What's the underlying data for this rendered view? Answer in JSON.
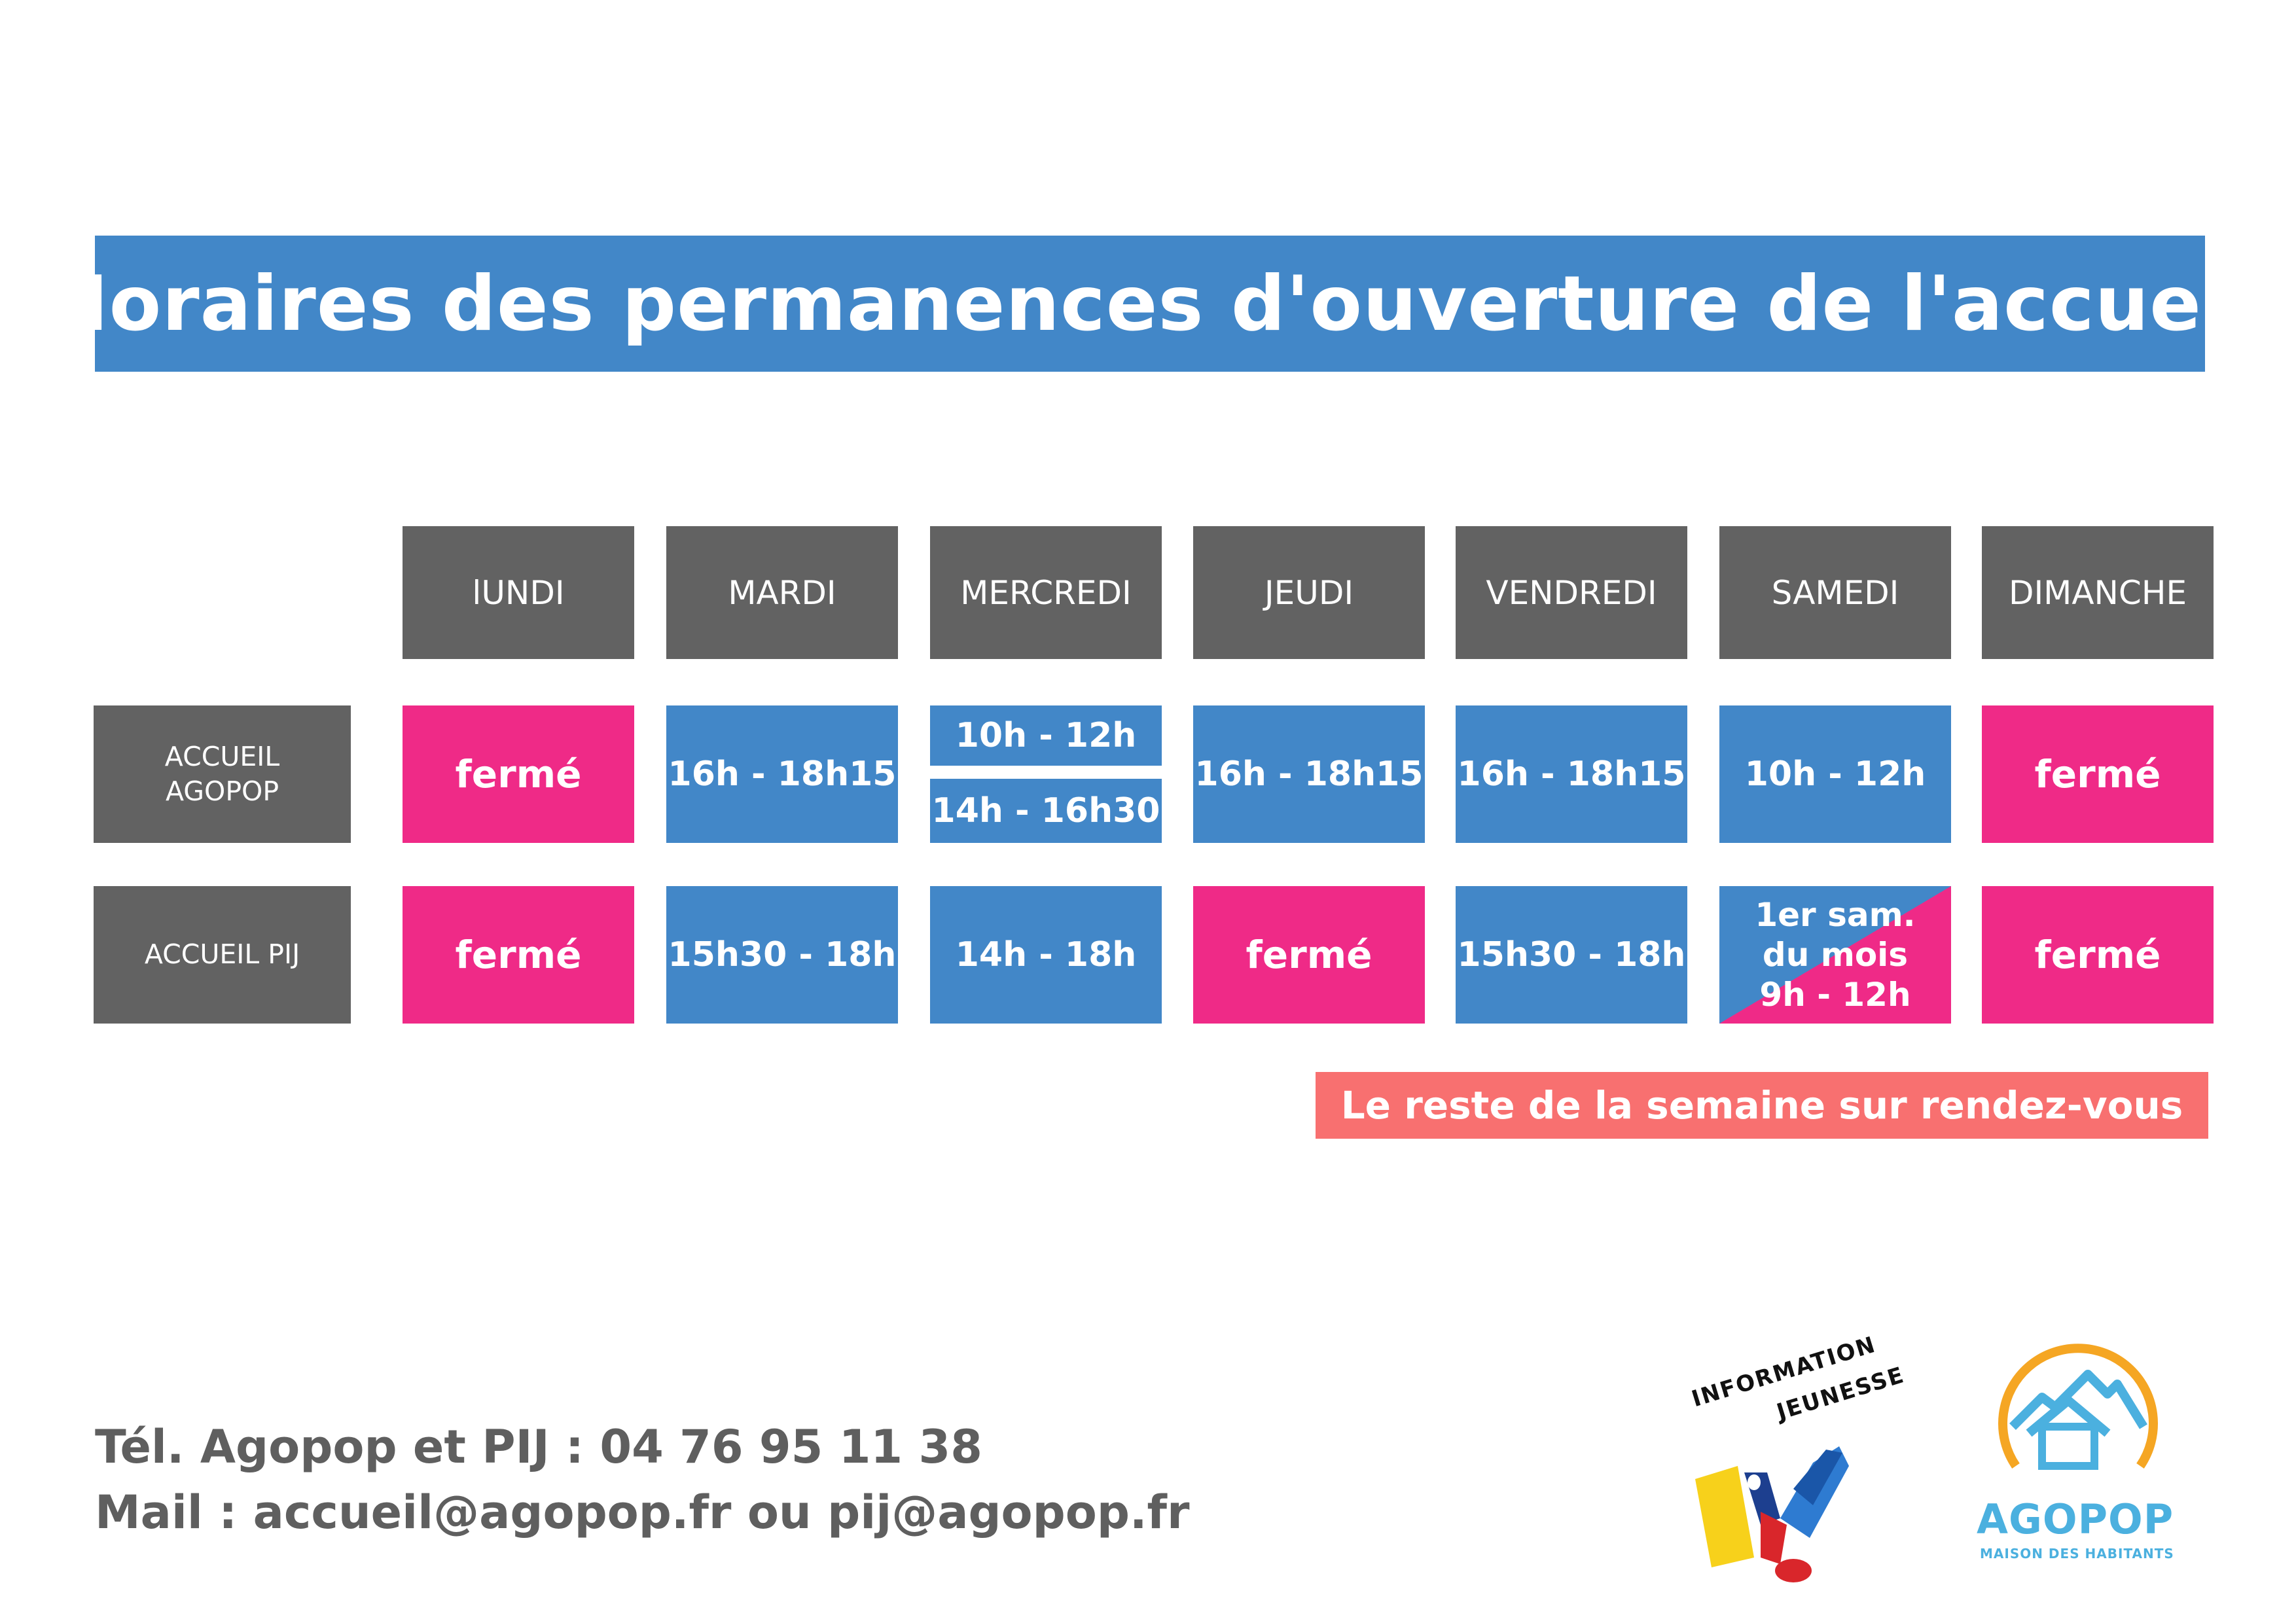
{
  "title": "Horaires des permanences d'ouverture de l'accueil",
  "days": [
    "lUNDI",
    "MARDI",
    "MERCREDI",
    "JEUDI",
    "VENDREDI",
    "SAMEDI",
    "DIMANCHE"
  ],
  "rows": [
    {
      "label_line1": "ACCUEIL",
      "label_line2": "AGOPOP",
      "cells": [
        "fermé",
        "16h - 18h15",
        "",
        "16h - 18h15",
        "16h - 18h15",
        "10h - 12h",
        "fermé"
      ],
      "mercredi_slot1": "10h - 12h",
      "mercredi_slot2": "14h - 16h30"
    },
    {
      "label": "ACCUEIL PIJ",
      "cells": [
        "fermé",
        "15h30 - 18h",
        "14h - 18h",
        "fermé",
        "15h30 - 18h",
        "",
        "fermé"
      ],
      "samedi_line1": "1er sam.",
      "samedi_line2": "du mois",
      "samedi_line3": "9h - 12h"
    }
  ],
  "note": "Le reste de la semaine sur rendez-vous",
  "contact": {
    "tel": "Tél. Agopop et PIJ : 04 76 95 11 38",
    "mail": "Mail : accueil@agopop.fr ou pij@agopop.fr"
  },
  "logos": {
    "ij_line1": "INFORMATION",
    "ij_line2": "JEUNESSE",
    "agopop_name": "AGOPOP",
    "agopop_sub": "MAISON DES HABITANTS"
  },
  "colors": {
    "blue": "#4287c8",
    "pink": "#ef2a87",
    "grey": "#626262",
    "salmon": "#f87070",
    "text_grey": "#5f5f5f",
    "agopop_blue": "#4bb0df",
    "agopop_orange": "#f5a623"
  }
}
